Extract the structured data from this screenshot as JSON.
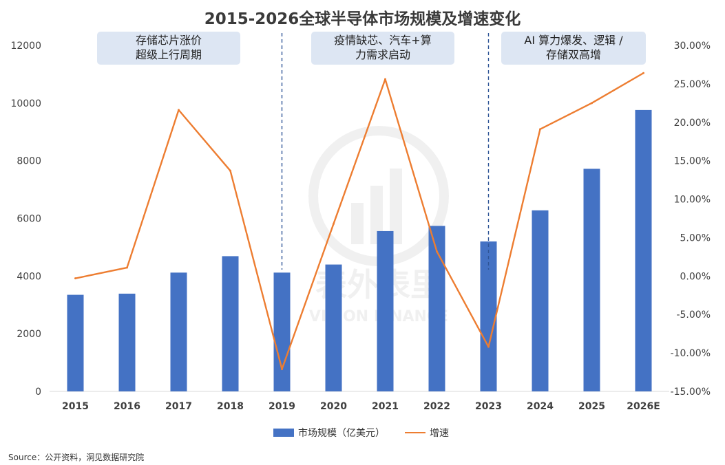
{
  "chart_data": {
    "type": "bar+line",
    "title": "2015-2026全球半导体市场规模及增速变化",
    "categories": [
      "2015",
      "2016",
      "2017",
      "2018",
      "2019",
      "2020",
      "2021",
      "2022",
      "2023",
      "2024",
      "2025",
      "2026E"
    ],
    "series": [
      {
        "name": "市场规模（亿美元）",
        "type": "bar",
        "axis": "left",
        "color": "#4472c4",
        "values": [
          3350,
          3390,
          4120,
          4690,
          4120,
          4400,
          5560,
          5740,
          5200,
          6280,
          7720,
          9760
        ]
      },
      {
        "name": "增速",
        "type": "line",
        "axis": "right",
        "color": "#ed7d31",
        "values": [
          -0.3,
          1.1,
          21.6,
          13.7,
          -12.1,
          6.8,
          25.6,
          3.2,
          -9.2,
          19.1,
          22.5,
          26.4
        ]
      }
    ],
    "y_left": {
      "ylim": [
        0,
        12000
      ],
      "ticks": [
        "0",
        "2000",
        "4000",
        "6000",
        "8000",
        "10000",
        "12000"
      ]
    },
    "y_right": {
      "ylim": [
        -15,
        30
      ],
      "ticks": [
        "-15.00%",
        "-10.00%",
        "-5.00%",
        "0.00%",
        "5.00%",
        "10.00%",
        "15.00%",
        "20.00%",
        "25.00%",
        "30.00%"
      ]
    },
    "grid": false,
    "legend": "bottom",
    "annotations": [
      {
        "lines": [
          "存储芯片涨价",
          "超级上行周期"
        ]
      },
      {
        "lines": [
          "疫情缺芯、汽车+算",
          "力需求启动"
        ]
      },
      {
        "lines": [
          "AI 算力爆发、逻辑 /",
          "存储双高增"
        ]
      }
    ],
    "dividers_after": [
      "2018",
      "2022"
    ]
  },
  "watermark": {
    "cn": "表外表里",
    "en": "VISION FINANCE"
  },
  "source": "Source：公开资料，洞见数据研究院"
}
